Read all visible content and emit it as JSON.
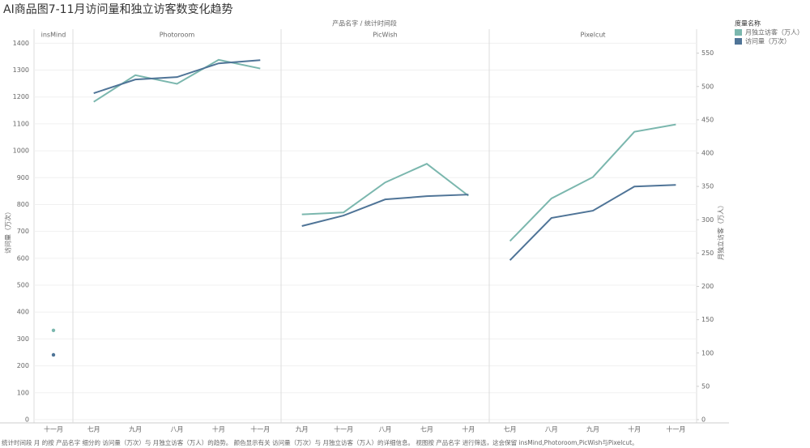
{
  "chart_data": {
    "type": "line",
    "title": "AI商品图7-11月访问量和独立访客数变化趋势",
    "header": "产品名字 / 统计时间段",
    "y_label": "访问量（万次）",
    "y2_label": "月独立访客（万人）",
    "ylim": [
      0,
      1410
    ],
    "yticks": [
      0,
      100,
      200,
      300,
      400,
      500,
      600,
      700,
      800,
      900,
      1000,
      1100,
      1200,
      1300,
      1400
    ],
    "y2lim": [
      0,
      569
    ],
    "y2ticks": [
      0,
      50,
      100,
      150,
      200,
      250,
      300,
      350,
      400,
      450,
      500,
      550
    ],
    "grid": true,
    "legend_title": "度量名称",
    "series": [
      {
        "name": "月独立访客（万人）",
        "color": "#7bb7ae",
        "axis": "y2"
      },
      {
        "name": "访问量（万次）",
        "color": "#4f7497",
        "axis": "y"
      }
    ],
    "panels": [
      {
        "name": "insMind",
        "categories": [
          "十一月"
        ],
        "series": [
          {
            "values": [
              134
            ]
          },
          {
            "values": [
              241
            ]
          }
        ]
      },
      {
        "name": "Photoroom",
        "categories": [
          "七月",
          "九月",
          "八月",
          "十月",
          "十一月"
        ],
        "series": [
          {
            "values": [
              477,
              517,
              504,
              540,
              527
            ]
          },
          {
            "values": [
              1214,
              1265,
              1274,
              1325,
              1337
            ]
          }
        ]
      },
      {
        "name": "PicWish",
        "categories": [
          "九月",
          "十一月",
          "八月",
          "七月",
          "十月"
        ],
        "series": [
          {
            "values": [
              308,
              311,
              356,
              384,
              336
            ]
          },
          {
            "values": [
              720,
              759,
              819,
              831,
              837
            ]
          }
        ]
      },
      {
        "name": "Pixelcut",
        "categories": [
          "七月",
          "八月",
          "九月",
          "十月",
          "十一月"
        ],
        "series": [
          {
            "values": [
              268,
              332,
              364,
              432,
              443
            ]
          },
          {
            "values": [
              593,
              750,
              777,
              867,
              873
            ]
          }
        ]
      }
    ],
    "caption": "统计时间段 月 的按 产品名字 细分的 访问量（万次）与 月独立访客（万人）的趋势。 颜色显示有关 访问量（万次）与 月独立访客（万人）的详细信息。 视图按 产品名字 进行筛选，这会保留 insMind,Photoroom,PicWish与Pixelcut。"
  }
}
